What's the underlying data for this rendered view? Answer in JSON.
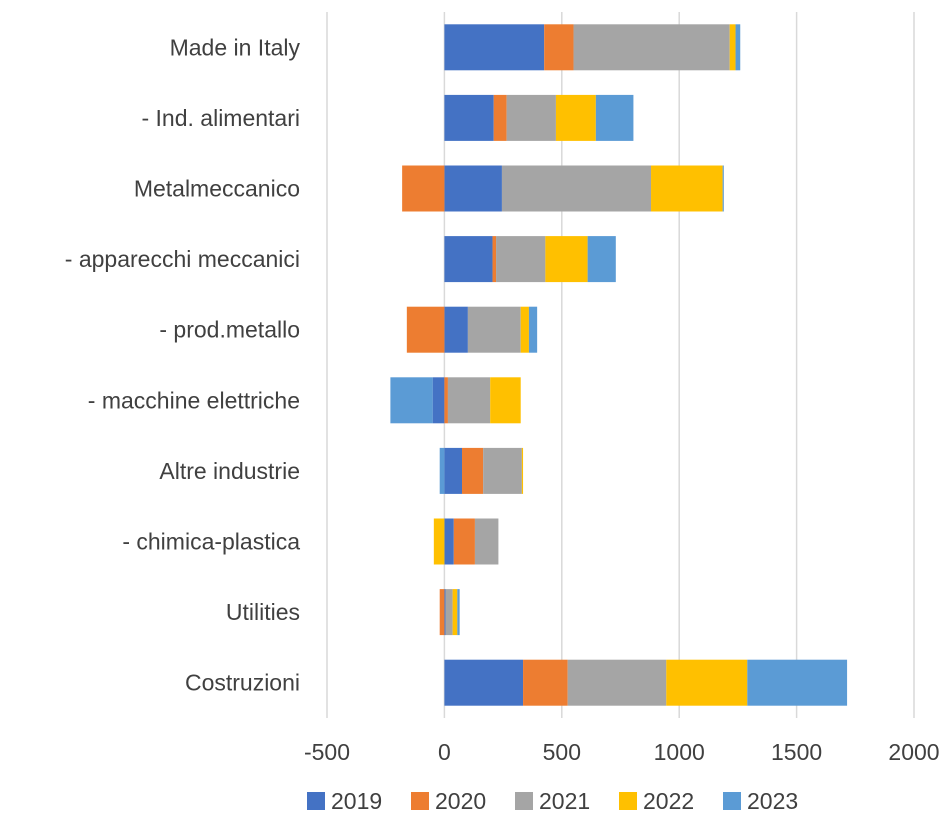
{
  "chart_data": {
    "type": "bar",
    "orientation": "horizontal",
    "stacked": true,
    "categories": [
      "Made in Italy",
      "- Ind. alimentari",
      "Metalmeccanico",
      "- apparecchi meccanici",
      "- prod.metallo",
      "- macchine elettriche",
      "Altre industrie",
      "- chimica-plastica",
      "Utilities",
      "Costruzioni"
    ],
    "series": [
      {
        "name": "2019",
        "color": "#4472C4",
        "values": [
          425,
          210,
          245,
          205,
          100,
          -50,
          75,
          40,
          5,
          335
        ]
      },
      {
        "name": "2020",
        "color": "#ED7D31",
        "values": [
          125,
          55,
          -180,
          15,
          -160,
          15,
          90,
          90,
          -20,
          190
        ]
      },
      {
        "name": "2021",
        "color": "#A5A5A5",
        "values": [
          665,
          210,
          635,
          210,
          225,
          180,
          165,
          100,
          30,
          420
        ]
      },
      {
        "name": "2022",
        "color": "#FFC000",
        "values": [
          25,
          170,
          305,
          180,
          35,
          130,
          5,
          -45,
          20,
          345
        ]
      },
      {
        "name": "2023",
        "color": "#5B9BD5",
        "values": [
          20,
          160,
          5,
          120,
          35,
          -180,
          -20,
          0,
          10,
          425
        ]
      }
    ],
    "xlim": [
      -500,
      2000
    ],
    "xticks": [
      "-500",
      "0",
      "500",
      "1000",
      "1500",
      "2000"
    ],
    "grid": true,
    "legend": "bottom"
  }
}
